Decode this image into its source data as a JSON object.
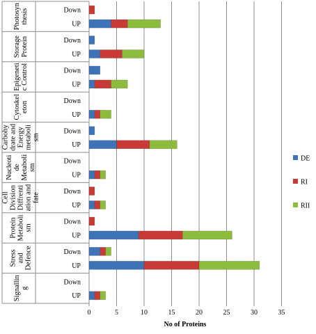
{
  "colors": {
    "DE": "#3f73b8",
    "RI": "#c83a35",
    "RII": "#8dbb3e",
    "grid": "#8c8c8c",
    "axis": "#8c8c8c"
  },
  "chart_data": {
    "type": "bar",
    "orientation": "horizontal",
    "stacked": true,
    "xlabel": "No of Proteins",
    "xlim": [
      0,
      35
    ],
    "xticks": [
      0,
      5,
      10,
      15,
      20,
      25,
      30,
      35
    ],
    "grid": true,
    "legend_position": "right",
    "series_names": [
      "DE",
      "RI",
      "RII"
    ],
    "groups": [
      {
        "label_lines": [
          "Photosyn",
          "thesis"
        ],
        "rows": [
          {
            "label": "Down",
            "values": [
              0,
              1,
              0
            ]
          },
          {
            "label": "UP",
            "values": [
              4,
              3,
              6
            ]
          }
        ]
      },
      {
        "label_lines": [
          "Storage",
          "Protein"
        ],
        "rows": [
          {
            "label": "Down",
            "values": [
              1,
              0,
              0
            ]
          },
          {
            "label": "UP",
            "values": [
              2,
              4,
              4
            ]
          }
        ]
      },
      {
        "label_lines": [
          "Epigeneti",
          "c Control"
        ],
        "rows": [
          {
            "label": "Down",
            "values": [
              2,
              0,
              0
            ]
          },
          {
            "label": "UP",
            "values": [
              1,
              3,
              3
            ]
          }
        ]
      },
      {
        "label_lines": [
          "Cytoskel",
          "eton"
        ],
        "rows": [
          {
            "label": "Down",
            "values": [
              0,
              0,
              0
            ]
          },
          {
            "label": "UP",
            "values": [
              1,
              1,
              2
            ]
          }
        ]
      },
      {
        "label_lines": [
          "Carbohy",
          "drate and",
          "Energy",
          "metaboli",
          "sm"
        ],
        "rows": [
          {
            "label": "Down",
            "values": [
              1,
              0,
              0
            ]
          },
          {
            "label": "UP",
            "values": [
              5,
              6,
              5
            ]
          }
        ]
      },
      {
        "label_lines": [
          "Nucleoti",
          "de",
          "Metaboli",
          "sm"
        ],
        "rows": [
          {
            "label": "Down",
            "values": [
              0,
              0,
              0
            ]
          },
          {
            "label": "UP",
            "values": [
              1,
              1,
              1
            ]
          }
        ]
      },
      {
        "label_lines": [
          "Cell",
          "Division",
          "Diffrenti",
          "ation and",
          "fate"
        ],
        "rows": [
          {
            "label": "Down",
            "values": [
              0,
              1,
              0
            ]
          },
          {
            "label": "UP",
            "values": [
              1,
              1,
              1
            ]
          }
        ]
      },
      {
        "label_lines": [
          "Protein",
          "Metaboli",
          "sm"
        ],
        "rows": [
          {
            "label": "Down",
            "values": [
              0,
              1,
              0
            ]
          },
          {
            "label": "UP",
            "values": [
              9,
              8,
              9
            ]
          }
        ]
      },
      {
        "label_lines": [
          "Stress",
          "and",
          "Defence"
        ],
        "rows": [
          {
            "label": "Down",
            "values": [
              2,
              1,
              1
            ]
          },
          {
            "label": "UP",
            "values": [
              10,
              10,
              11
            ]
          }
        ]
      },
      {
        "label_lines": [
          "Signallin",
          "g"
        ],
        "rows": [
          {
            "label": "Down",
            "values": [
              0,
              0,
              0
            ]
          },
          {
            "label": "UP",
            "values": [
              1,
              1,
              1
            ]
          }
        ]
      }
    ]
  }
}
